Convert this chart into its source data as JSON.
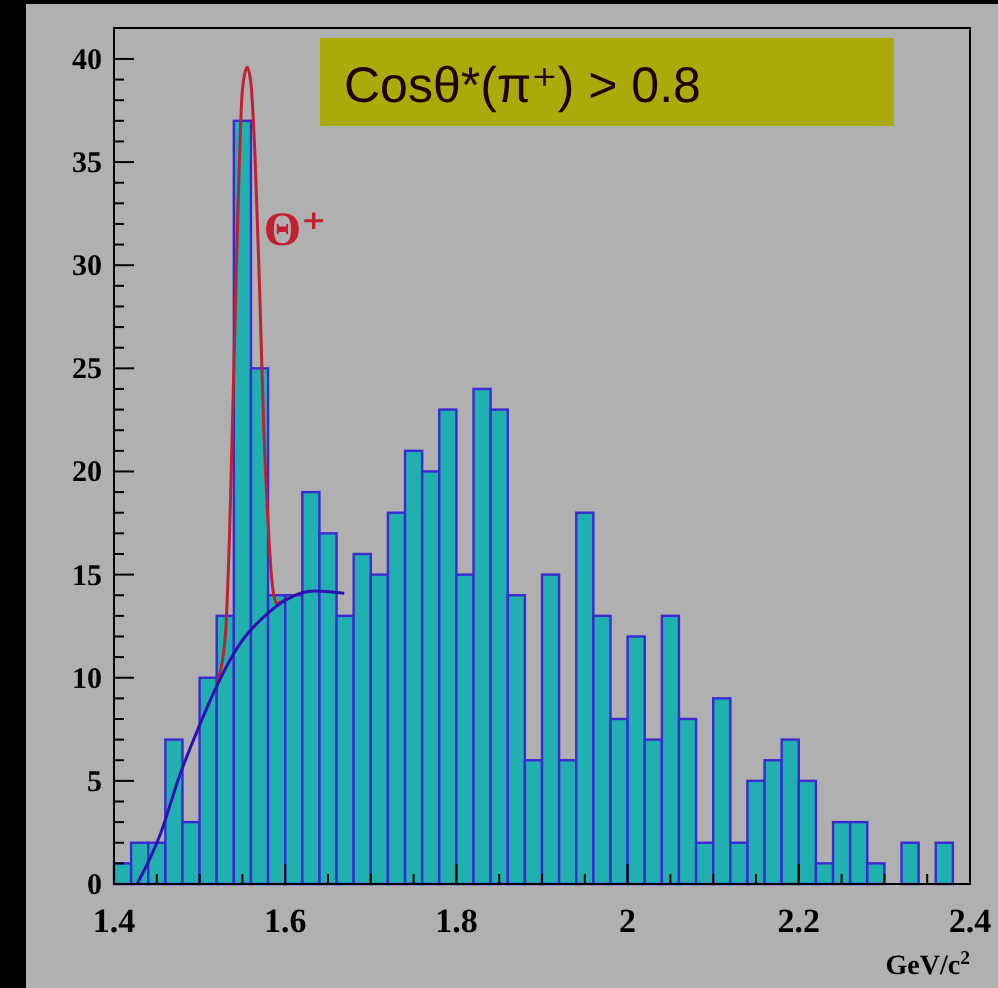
{
  "chart_data": {
    "type": "histogram",
    "title": "Cosθ*(π⁺) > 0.8",
    "xlabel": "GeV/c$^{2}$",
    "bins": [
      1.4,
      1.42,
      1.44,
      1.46,
      1.48,
      1.5,
      1.52,
      1.54,
      1.56,
      1.58,
      1.6,
      1.62,
      1.64,
      1.66,
      1.68,
      1.7,
      1.72,
      1.74,
      1.76,
      1.78,
      1.8,
      1.82,
      1.84,
      1.86,
      1.88,
      1.9,
      1.92,
      1.94,
      1.96,
      1.98,
      2.0,
      2.02,
      2.04,
      2.06,
      2.08,
      2.1,
      2.12,
      2.14,
      2.16,
      2.18,
      2.2,
      2.22,
      2.24,
      2.26,
      2.28,
      2.3,
      2.32,
      2.34,
      2.36,
      2.38,
      2.4
    ],
    "series": [
      {
        "color": "#20b0b0",
        "values": [
          1,
          2,
          2,
          7,
          3,
          10,
          13,
          37,
          25,
          14,
          14,
          19,
          17,
          13,
          16,
          15,
          18,
          21,
          20,
          23,
          15,
          24,
          23,
          14,
          6,
          15,
          6,
          18,
          13,
          8,
          12,
          7,
          13,
          8,
          2,
          9,
          2,
          5,
          6,
          7,
          5,
          1,
          3,
          3,
          1,
          0,
          2,
          0,
          2,
          0
        ]
      },
      {
        "type": "line",
        "color": "#c02030",
        "x": [
          1.52,
          1.53,
          1.535,
          1.54,
          1.545,
          1.55,
          1.5555,
          1.56,
          1.565,
          1.57,
          1.575,
          1.58,
          1.585,
          1.59,
          1.6
        ],
        "values": [
          9.7,
          12,
          17,
          25,
          33,
          38.5,
          39.6,
          38.8,
          35,
          29,
          22,
          17.5,
          14.5,
          13.6,
          13.8
        ]
      },
      {
        "type": "line",
        "color": "#3010b0",
        "x": [
          1.427,
          1.454,
          1.477,
          1.5,
          1.52,
          1.548,
          1.579,
          1.602,
          1.634,
          1.669
        ],
        "values": [
          0,
          2.4,
          5.3,
          7.7,
          9.6,
          11.7,
          13.1,
          13.8,
          14.2,
          14.1
        ]
      }
    ],
    "annotations": [
      {
        "text": "Θ⁺",
        "x": 1.575,
        "y": 31
      }
    ],
    "xlim": [
      1.4,
      2.4
    ],
    "ylim": [
      0,
      41.5
    ],
    "xticks": [
      1.4,
      {
        "value": 1.45,
        "label": null
      },
      {
        "value": 1.5,
        "label": null
      },
      {
        "value": 1.55,
        "label": null
      },
      1.6,
      {
        "value": 1.65,
        "label": null
      },
      {
        "value": 1.7,
        "label": null
      },
      {
        "value": 1.75,
        "label": null
      },
      1.8,
      {
        "value": 1.85,
        "label": null
      },
      {
        "value": 1.9,
        "label": null
      },
      {
        "value": 1.95,
        "label": null
      },
      2,
      {
        "value": 2.05,
        "label": null
      },
      {
        "value": 2.1,
        "label": null
      },
      {
        "value": 2.15,
        "label": null
      },
      2.2,
      {
        "value": 2.25,
        "label": null
      },
      {
        "value": 2.3,
        "label": null
      },
      {
        "value": 2.35,
        "label": null
      },
      2.4
    ],
    "yticks": [
      0,
      {
        "value": 1,
        "label": null
      },
      {
        "value": 2,
        "label": null
      },
      {
        "value": 3,
        "label": null
      },
      {
        "value": 4,
        "label": null
      },
      5,
      {
        "value": 6,
        "label": null
      },
      {
        "value": 7,
        "label": null
      },
      {
        "value": 8,
        "label": null
      },
      {
        "value": 9,
        "label": null
      },
      10,
      {
        "value": 11,
        "label": null
      },
      {
        "value": 12,
        "label": null
      },
      {
        "value": 13,
        "label": null
      },
      {
        "value": 14,
        "label": null
      },
      15,
      {
        "value": 16,
        "label": null
      },
      {
        "value": 17,
        "label": null
      },
      {
        "value": 18,
        "label": null
      },
      {
        "value": 19,
        "label": null
      },
      20,
      {
        "value": 21,
        "label": null
      },
      {
        "value": 22,
        "label": null
      },
      {
        "value": 23,
        "label": null
      },
      {
        "value": 24,
        "label": null
      },
      25,
      {
        "value": 26,
        "label": null
      },
      {
        "value": 27,
        "label": null
      },
      {
        "value": 28,
        "label": null
      },
      {
        "value": 29,
        "label": null
      },
      30,
      {
        "value": 31,
        "label": null
      },
      {
        "value": 32,
        "label": null
      },
      {
        "value": 33,
        "label": null
      },
      {
        "value": 34,
        "label": null
      },
      35,
      {
        "value": 36,
        "label": null
      },
      {
        "value": 37,
        "label": null
      },
      {
        "value": 38,
        "label": null
      },
      {
        "value": 39,
        "label": null
      },
      40
    ],
    "grid": false
  }
}
